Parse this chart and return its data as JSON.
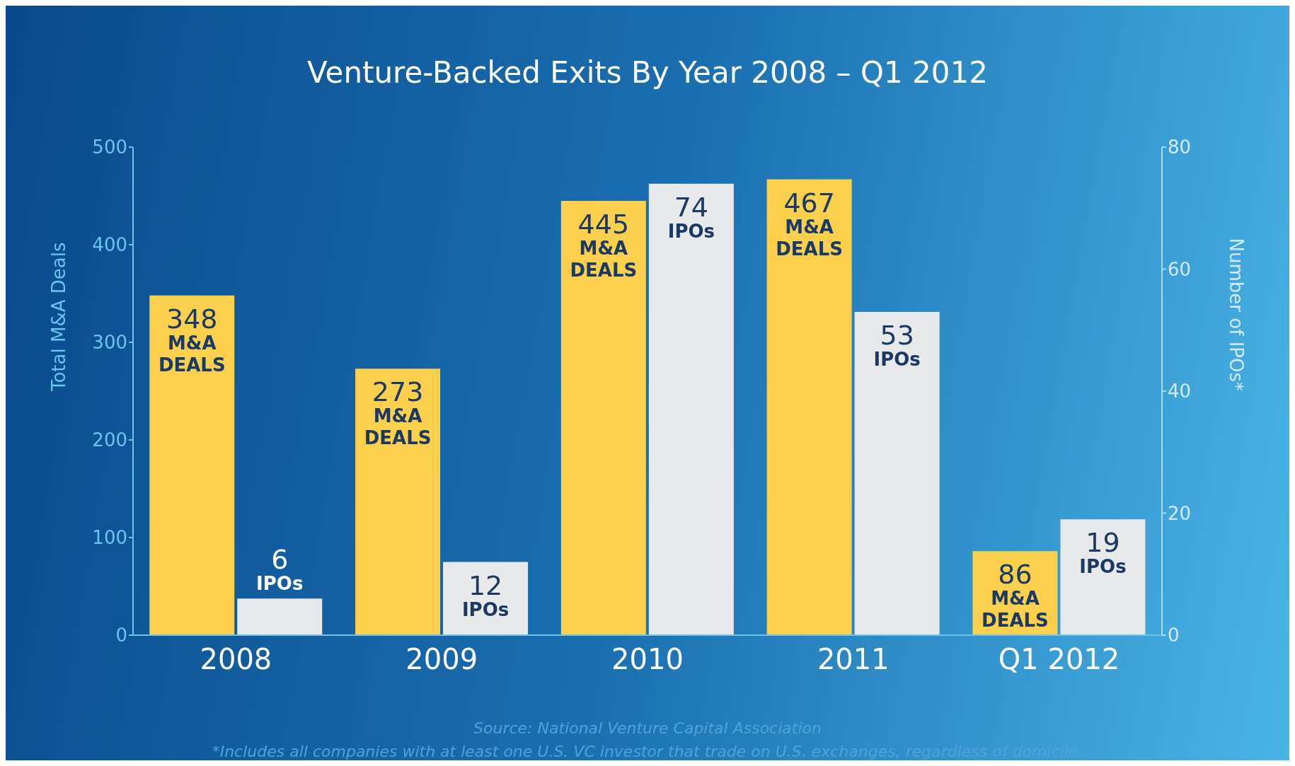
{
  "chart_data": {
    "type": "bar",
    "title": "Venture-Backed Exits By Year 2008 – Q1 2012",
    "ylabel": "Total M&A Deals",
    "y2label": "Number of IPOs*",
    "categories": [
      "2008",
      "2009",
      "2010",
      "2011",
      "Q1 2012"
    ],
    "series": [
      {
        "name": "M&A DEALS",
        "color": "#fccf4c",
        "values": [
          348,
          273,
          445,
          467,
          86
        ]
      },
      {
        "name": "IPOs",
        "color": "#e8e9eb",
        "values": [
          6,
          12,
          74,
          53,
          19
        ],
        "axis": "y2"
      }
    ],
    "ylim": [
      0,
      500
    ],
    "yticks": [
      0,
      100,
      200,
      300,
      400,
      500
    ],
    "y2lim": [
      0,
      80
    ],
    "y2ticks": [
      0,
      20,
      40,
      60,
      80
    ],
    "data_labels": true,
    "grid": false,
    "legend": false,
    "annotations": [
      "Source: National Venture Capital Association",
      "*Includes all companies with at least one U.S. VC investor that trade on U.S. exchanges, regardless of domicile."
    ]
  }
}
